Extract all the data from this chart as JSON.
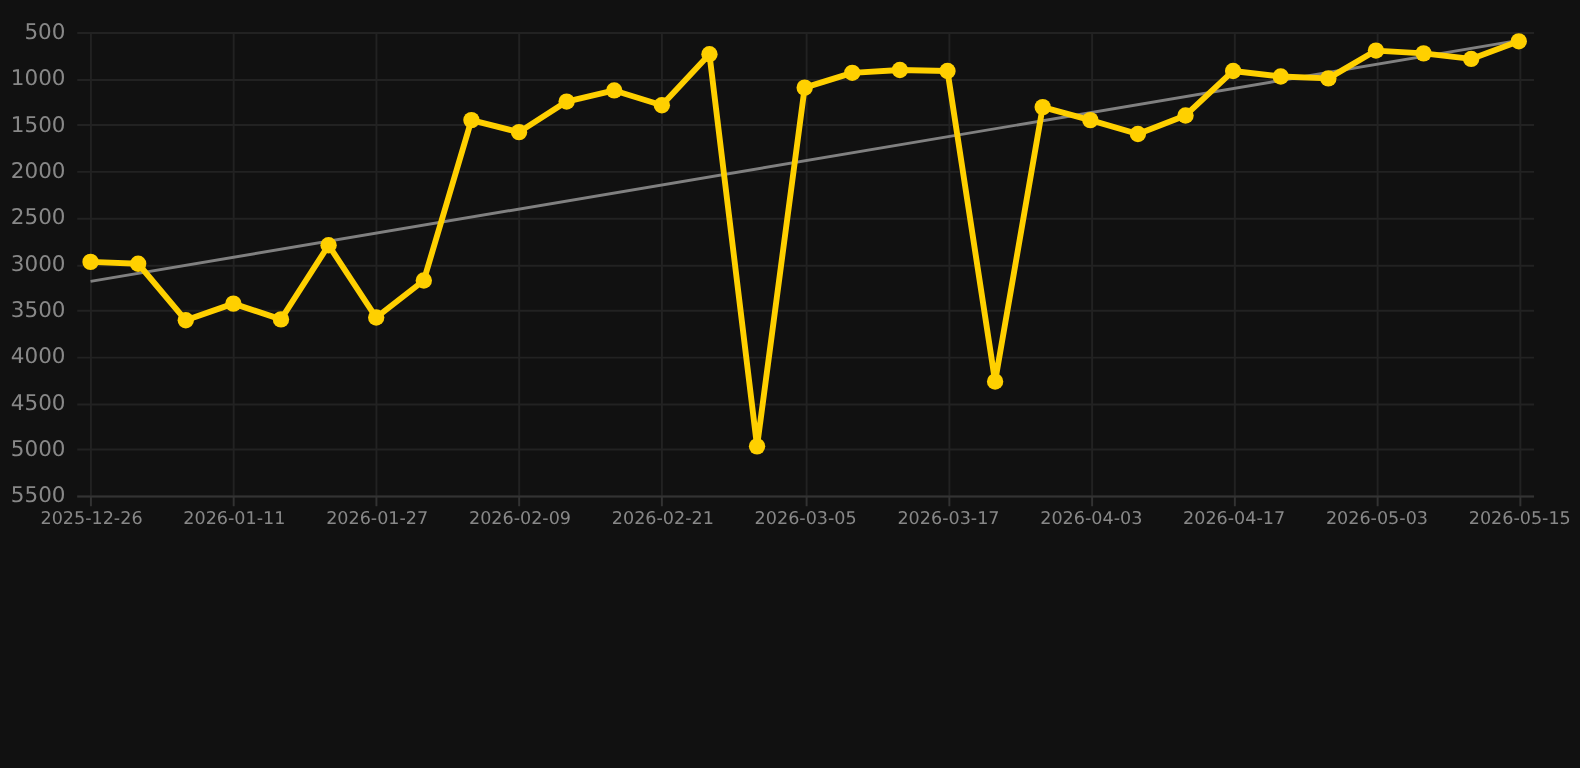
{
  "chart_data": {
    "type": "line",
    "categories": [
      "2025-12-26",
      null,
      null,
      "2026-01-11",
      null,
      null,
      "2026-01-27",
      null,
      null,
      "2026-02-09",
      null,
      null,
      "2026-02-21",
      null,
      null,
      "2026-03-05",
      null,
      null,
      "2026-03-17",
      null,
      null,
      "2026-04-03",
      null,
      null,
      "2026-04-17",
      null,
      null,
      "2026-05-03",
      null,
      null,
      "2026-05-15"
    ],
    "series": [
      {
        "type": "line",
        "color": "#808080",
        "marker": "none",
        "values": [
          3190,
          null,
          null,
          null,
          null,
          null,
          null,
          null,
          null,
          null,
          null,
          null,
          null,
          null,
          null,
          null,
          null,
          null,
          null,
          null,
          null,
          null,
          null,
          null,
          null,
          null,
          null,
          null,
          null,
          null,
          590
        ]
      },
      {
        "color": "#ffd000",
        "marker": "circle",
        "values": [
          2980,
          3000,
          3610,
          3430,
          3600,
          2800,
          3580,
          3180,
          1450,
          1580,
          1250,
          1130,
          1290,
          740,
          4970,
          1100,
          940,
          910,
          920,
          4270,
          1310,
          1450,
          1600,
          1400,
          920,
          980,
          1000,
          700,
          730,
          790,
          600
        ]
      }
    ],
    "ylim": [
      5500,
      500
    ],
    "yticks": [
      500,
      1000,
      1500,
      2000,
      2500,
      3000,
      3500,
      4000,
      4500,
      5000,
      5500
    ],
    "grid": true
  }
}
